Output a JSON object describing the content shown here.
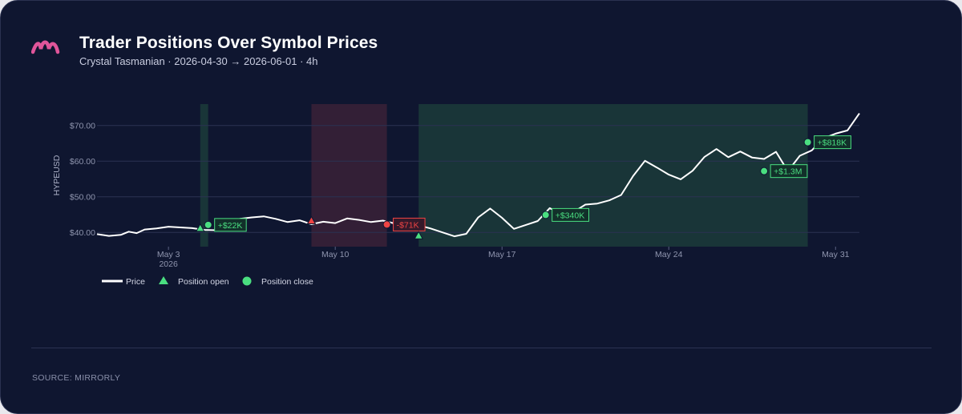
{
  "header": {
    "title": "Trader Positions Over Symbol Prices",
    "subtitle": "Crystal Tasmanian · 2026-04-30 → 2026-06-01 · 4h"
  },
  "footer": {
    "source": "SOURCE: MIRRORLY"
  },
  "colors": {
    "background": "#0f1630",
    "price_line": "#ffffff",
    "profit": "#4ade80",
    "loss": "#ef4444",
    "profit_band": "#1b3b3a",
    "loss_band": "#3a2137",
    "grid": "#2b3252",
    "logo": "#e0559a"
  },
  "chart_data": {
    "type": "line",
    "ylabel": "HYPEUSD",
    "ylim": [
      36,
      76
    ],
    "yticks": [
      40,
      50,
      60,
      70
    ],
    "ytick_labels": [
      "$40.00",
      "$50.00",
      "$60.00",
      "$70.00"
    ],
    "xlim": [
      "2026-04-30",
      "2026-06-01"
    ],
    "xticks": [
      {
        "date": "2026-05-03",
        "label": "May 3",
        "sublabel": "2026"
      },
      {
        "date": "2026-05-10",
        "label": "May 10",
        "sublabel": ""
      },
      {
        "date": "2026-05-17",
        "label": "May 17",
        "sublabel": ""
      },
      {
        "date": "2026-05-24",
        "label": "May 24",
        "sublabel": ""
      },
      {
        "date": "2026-05-31",
        "label": "May 31",
        "sublabel": ""
      }
    ],
    "grid": true,
    "legend_position": "bottom-left",
    "legend": [
      {
        "label": "Price",
        "symbol": "line"
      },
      {
        "label": "Position open",
        "symbol": "triangle"
      },
      {
        "label": "Position close",
        "symbol": "circle"
      }
    ],
    "series": [
      {
        "name": "Price",
        "points": [
          [
            "2026-04-30",
            39.5
          ],
          [
            "2026-04-30T12",
            39.0
          ],
          [
            "2026-05-01",
            39.3
          ],
          [
            "2026-05-01T08",
            40.2
          ],
          [
            "2026-05-01T16",
            39.8
          ],
          [
            "2026-05-02",
            40.8
          ],
          [
            "2026-05-02T12",
            41.1
          ],
          [
            "2026-05-03",
            41.6
          ],
          [
            "2026-05-03T12",
            41.4
          ],
          [
            "2026-05-04",
            41.2
          ],
          [
            "2026-05-04T12",
            40.7
          ],
          [
            "2026-05-05",
            40.6
          ],
          [
            "2026-05-05T12",
            41.8
          ],
          [
            "2026-05-06",
            43.8
          ],
          [
            "2026-05-06T12",
            44.2
          ],
          [
            "2026-05-07",
            44.5
          ],
          [
            "2026-05-07T12",
            43.8
          ],
          [
            "2026-05-08",
            42.9
          ],
          [
            "2026-05-08T12",
            43.4
          ],
          [
            "2026-05-09",
            42.3
          ],
          [
            "2026-05-09T12",
            43.0
          ],
          [
            "2026-05-10",
            42.6
          ],
          [
            "2026-05-10T12",
            43.9
          ],
          [
            "2026-05-11",
            43.5
          ],
          [
            "2026-05-11T12",
            42.9
          ],
          [
            "2026-05-12",
            43.3
          ],
          [
            "2026-05-12T12",
            42.5
          ],
          [
            "2026-05-13",
            41.5
          ],
          [
            "2026-05-13T12",
            42.0
          ],
          [
            "2026-05-14",
            41.1
          ],
          [
            "2026-05-14T12",
            40.0
          ],
          [
            "2026-05-15",
            38.9
          ],
          [
            "2026-05-15T12",
            39.6
          ],
          [
            "2026-05-16",
            44.2
          ],
          [
            "2026-05-16T12",
            46.7
          ],
          [
            "2026-05-17",
            44.1
          ],
          [
            "2026-05-17T12",
            41.0
          ],
          [
            "2026-05-18",
            42.1
          ],
          [
            "2026-05-18T12",
            43.2
          ],
          [
            "2026-05-19",
            46.8
          ],
          [
            "2026-05-19T12",
            45.2
          ],
          [
            "2026-05-20",
            45.7
          ],
          [
            "2026-05-20T12",
            47.8
          ],
          [
            "2026-05-21",
            48.1
          ],
          [
            "2026-05-21T12",
            49.0
          ],
          [
            "2026-05-22",
            50.5
          ],
          [
            "2026-05-22T12",
            55.8
          ],
          [
            "2026-05-23",
            60.1
          ],
          [
            "2026-05-23T12",
            58.2
          ],
          [
            "2026-05-24",
            56.2
          ],
          [
            "2026-05-24T12",
            54.9
          ],
          [
            "2026-05-25",
            57.3
          ],
          [
            "2026-05-25T12",
            61.2
          ],
          [
            "2026-05-26",
            63.4
          ],
          [
            "2026-05-26T12",
            61.1
          ],
          [
            "2026-05-27",
            62.7
          ],
          [
            "2026-05-27T12",
            61.0
          ],
          [
            "2026-05-28",
            60.6
          ],
          [
            "2026-05-28T12",
            62.6
          ],
          [
            "2026-05-29",
            57.2
          ],
          [
            "2026-05-29T12",
            61.5
          ],
          [
            "2026-05-30",
            63.0
          ],
          [
            "2026-05-30T12",
            66.4
          ],
          [
            "2026-05-31",
            67.7
          ],
          [
            "2026-05-31T12",
            68.6
          ],
          [
            "2026-06-01",
            73.4
          ]
        ]
      }
    ],
    "position_ranges": [
      {
        "start": "2026-05-04T08",
        "end": "2026-05-04T16",
        "result": "profit"
      },
      {
        "start": "2026-05-09T00",
        "end": "2026-05-12T04",
        "result": "loss"
      },
      {
        "start": "2026-05-13T12",
        "end": "2026-05-29T20",
        "result": "profit"
      }
    ],
    "markers": [
      {
        "kind": "open",
        "date": "2026-05-04T08",
        "price": 41.2,
        "result": "profit"
      },
      {
        "kind": "close",
        "date": "2026-05-04T16",
        "price": 42.1,
        "result": "profit",
        "label": "+$22K"
      },
      {
        "kind": "open",
        "date": "2026-05-09T00",
        "price": 43.3,
        "result": "loss"
      },
      {
        "kind": "close",
        "date": "2026-05-12T04",
        "price": 42.2,
        "result": "loss",
        "label": "-$71K"
      },
      {
        "kind": "open",
        "date": "2026-05-13T12",
        "price": 39.1,
        "result": "profit"
      },
      {
        "kind": "close",
        "date": "2026-05-18T20",
        "price": 44.9,
        "result": "profit",
        "label": "+$340K"
      },
      {
        "kind": "close",
        "date": "2026-05-28T00",
        "price": 57.2,
        "result": "profit",
        "label": "+$1.3M"
      },
      {
        "kind": "close",
        "date": "2026-05-29T20",
        "price": 65.3,
        "result": "profit",
        "label": "+$818K"
      }
    ]
  }
}
